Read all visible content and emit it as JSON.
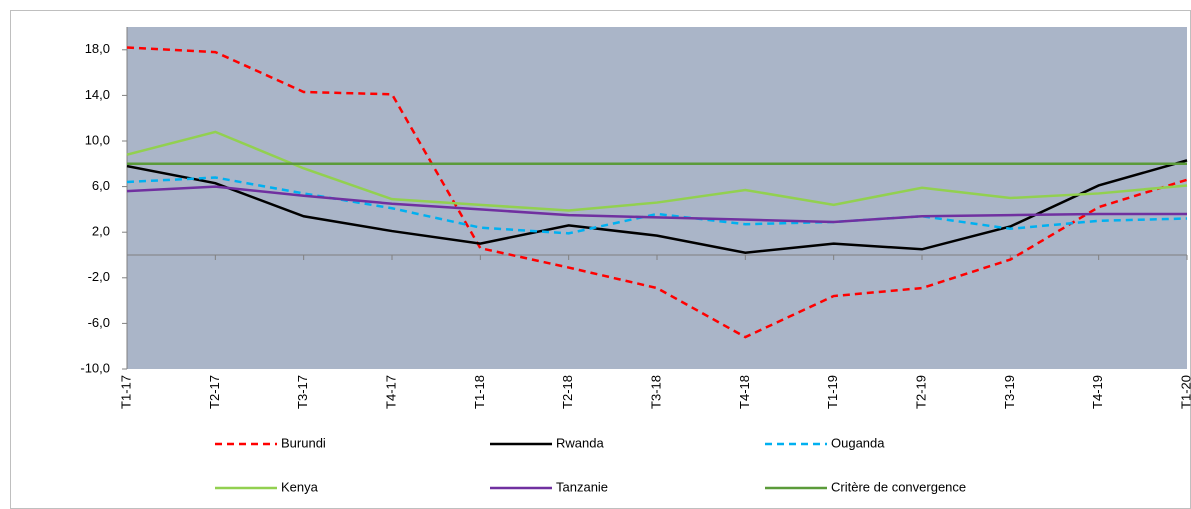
{
  "chart_data": {
    "type": "line",
    "categories": [
      "T1-17",
      "T2-17",
      "T3-17",
      "T4-17",
      "T1-18",
      "T2-18",
      "T3-18",
      "T4-18",
      "T1-19",
      "T2-19",
      "T3-19",
      "T4-19",
      "T1-20"
    ],
    "series": [
      {
        "name": "Burundi",
        "color": "#ff0000",
        "dashed": true,
        "values": [
          18.2,
          17.8,
          14.3,
          14.1,
          0.6,
          -1.1,
          -2.9,
          -7.2,
          -3.6,
          -2.9,
          -0.4,
          4.2,
          6.6
        ]
      },
      {
        "name": "Rwanda",
        "color": "#000000",
        "dashed": false,
        "values": [
          7.8,
          6.3,
          3.4,
          2.1,
          1.0,
          2.6,
          1.7,
          0.2,
          1.0,
          0.5,
          2.5,
          6.1,
          8.3
        ]
      },
      {
        "name": "Ouganda",
        "color": "#00b0f0",
        "dashed": true,
        "values": [
          6.4,
          6.8,
          5.4,
          4.1,
          2.4,
          1.9,
          3.6,
          2.7,
          2.9,
          3.4,
          2.3,
          3.0,
          3.2
        ]
      },
      {
        "name": "Kenya",
        "color": "#92d050",
        "dashed": false,
        "values": [
          8.8,
          10.8,
          7.6,
          4.9,
          4.4,
          3.9,
          4.6,
          5.7,
          4.4,
          5.9,
          5.0,
          5.4,
          6.1
        ]
      },
      {
        "name": "Tanzanie",
        "color": "#7030a0",
        "dashed": false,
        "values": [
          5.6,
          6.0,
          5.2,
          4.5,
          4.0,
          3.5,
          3.3,
          3.1,
          2.9,
          3.4,
          3.5,
          3.6,
          3.6
        ]
      },
      {
        "name": "Critère de convergence",
        "color": "#5b9b3a",
        "dashed": false,
        "values": [
          8,
          8,
          8,
          8,
          8,
          8,
          8,
          8,
          8,
          8,
          8,
          8,
          8
        ]
      }
    ],
    "ylim": [
      -10,
      20
    ],
    "yticks": [
      {
        "value": -10,
        "label": "-10,0"
      },
      {
        "value": -6,
        "label": "-6,0"
      },
      {
        "value": -2,
        "label": "-2,0"
      },
      {
        "value": 2,
        "label": "2,0"
      },
      {
        "value": 6,
        "label": "6,0"
      },
      {
        "value": 10,
        "label": "10,0"
      },
      {
        "value": 14,
        "label": "14,0"
      },
      {
        "value": 18,
        "label": "18,0"
      }
    ],
    "plot_background": "#aab5c8",
    "grid": false,
    "legend": "bottom"
  }
}
